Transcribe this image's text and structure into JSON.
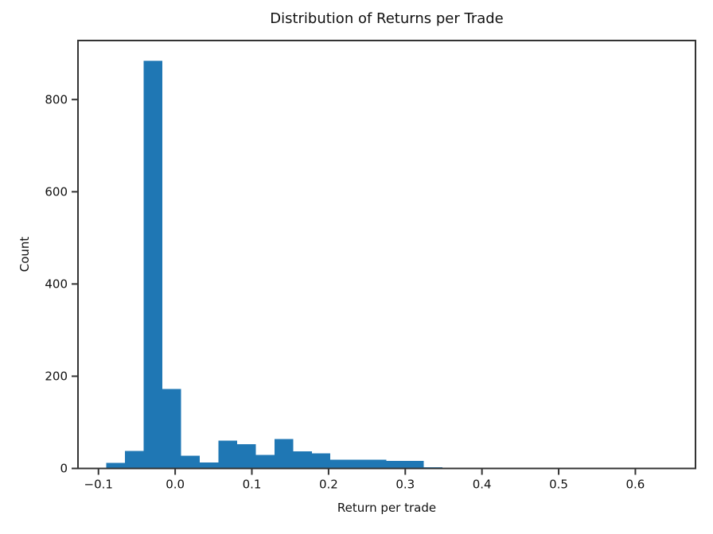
{
  "figure": {
    "background": "#ffffff"
  },
  "chart_data": {
    "type": "bar",
    "subtype": "histogram",
    "title": "Distribution of Returns per Trade",
    "xlabel": "Return per trade",
    "ylabel": "Count",
    "bar_color": "#1f77b4",
    "spine_color": "#333333",
    "text_color": "#111111",
    "grid": "off",
    "legend": "none",
    "bin_start": -0.09,
    "bin_width": 0.02437,
    "counts": [
      12,
      38,
      884,
      172,
      28,
      13,
      60,
      53,
      29,
      64,
      37,
      33,
      19,
      19,
      19,
      16,
      16,
      3,
      2,
      2,
      2,
      0,
      0,
      0,
      0,
      0,
      0,
      0,
      0,
      1
    ],
    "xlim": [
      -0.1267,
      0.6784
    ],
    "ylim": [
      0,
      928
    ],
    "xticks": [
      -0.1,
      0.0,
      0.1,
      0.2,
      0.3,
      0.4,
      0.5,
      0.6
    ],
    "xtick_labels": [
      "−0.1",
      "0.0",
      "0.1",
      "0.2",
      "0.3",
      "0.4",
      "0.5",
      "0.6"
    ],
    "yticks": [
      0,
      200,
      400,
      600,
      800
    ],
    "ytick_labels": [
      "0",
      "200",
      "400",
      "600",
      "800"
    ]
  }
}
